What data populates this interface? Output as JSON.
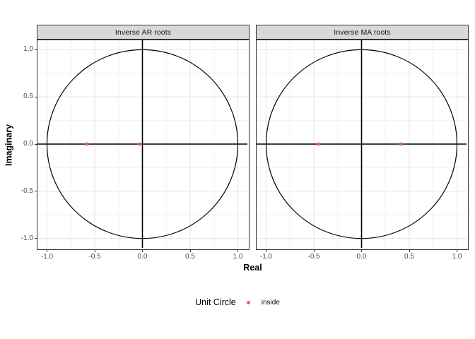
{
  "chart_data": {
    "type": "scatter",
    "title": "",
    "xlabel": "Real",
    "ylabel": "Imaginary",
    "xlim": [
      -1.1,
      1.1
    ],
    "ylim": [
      -1.1,
      1.1
    ],
    "x_ticks": [
      -1.0,
      -0.5,
      0.0,
      0.5,
      1.0
    ],
    "y_ticks": [
      1.0,
      0.5,
      0.0,
      -0.5,
      -1.0
    ],
    "x_minor_ticks": [
      -0.75,
      -0.25,
      0.25,
      0.75
    ],
    "y_minor_ticks": [
      -0.75,
      -0.25,
      0.25,
      0.75
    ],
    "grid": "on",
    "unit_circle_radius": 1.0,
    "panels": [
      {
        "title": "Inverse AR roots",
        "series": [
          {
            "name": "inside",
            "points": [
              [
                -0.58,
                0.0
              ],
              [
                -0.03,
                0.0
              ]
            ]
          }
        ]
      },
      {
        "title": "Inverse MA roots",
        "series": [
          {
            "name": "inside",
            "points": [
              [
                -0.45,
                0.0
              ],
              [
                0.41,
                0.0
              ]
            ]
          }
        ]
      }
    ],
    "legend": {
      "position": "bottom",
      "title": "Unit Circle",
      "entries": [
        {
          "label": "inside",
          "color": "#ee5a55"
        }
      ]
    },
    "colors": {
      "point": "#ee5a55",
      "strip_bg": "#d9d9d9",
      "border": "#333333",
      "grid_major": "#e4e4e4",
      "grid_minor": "#f2f2f2",
      "axis_line": "#000000",
      "circle_line": "#000000",
      "tick_text": "#4d4d4d"
    }
  }
}
